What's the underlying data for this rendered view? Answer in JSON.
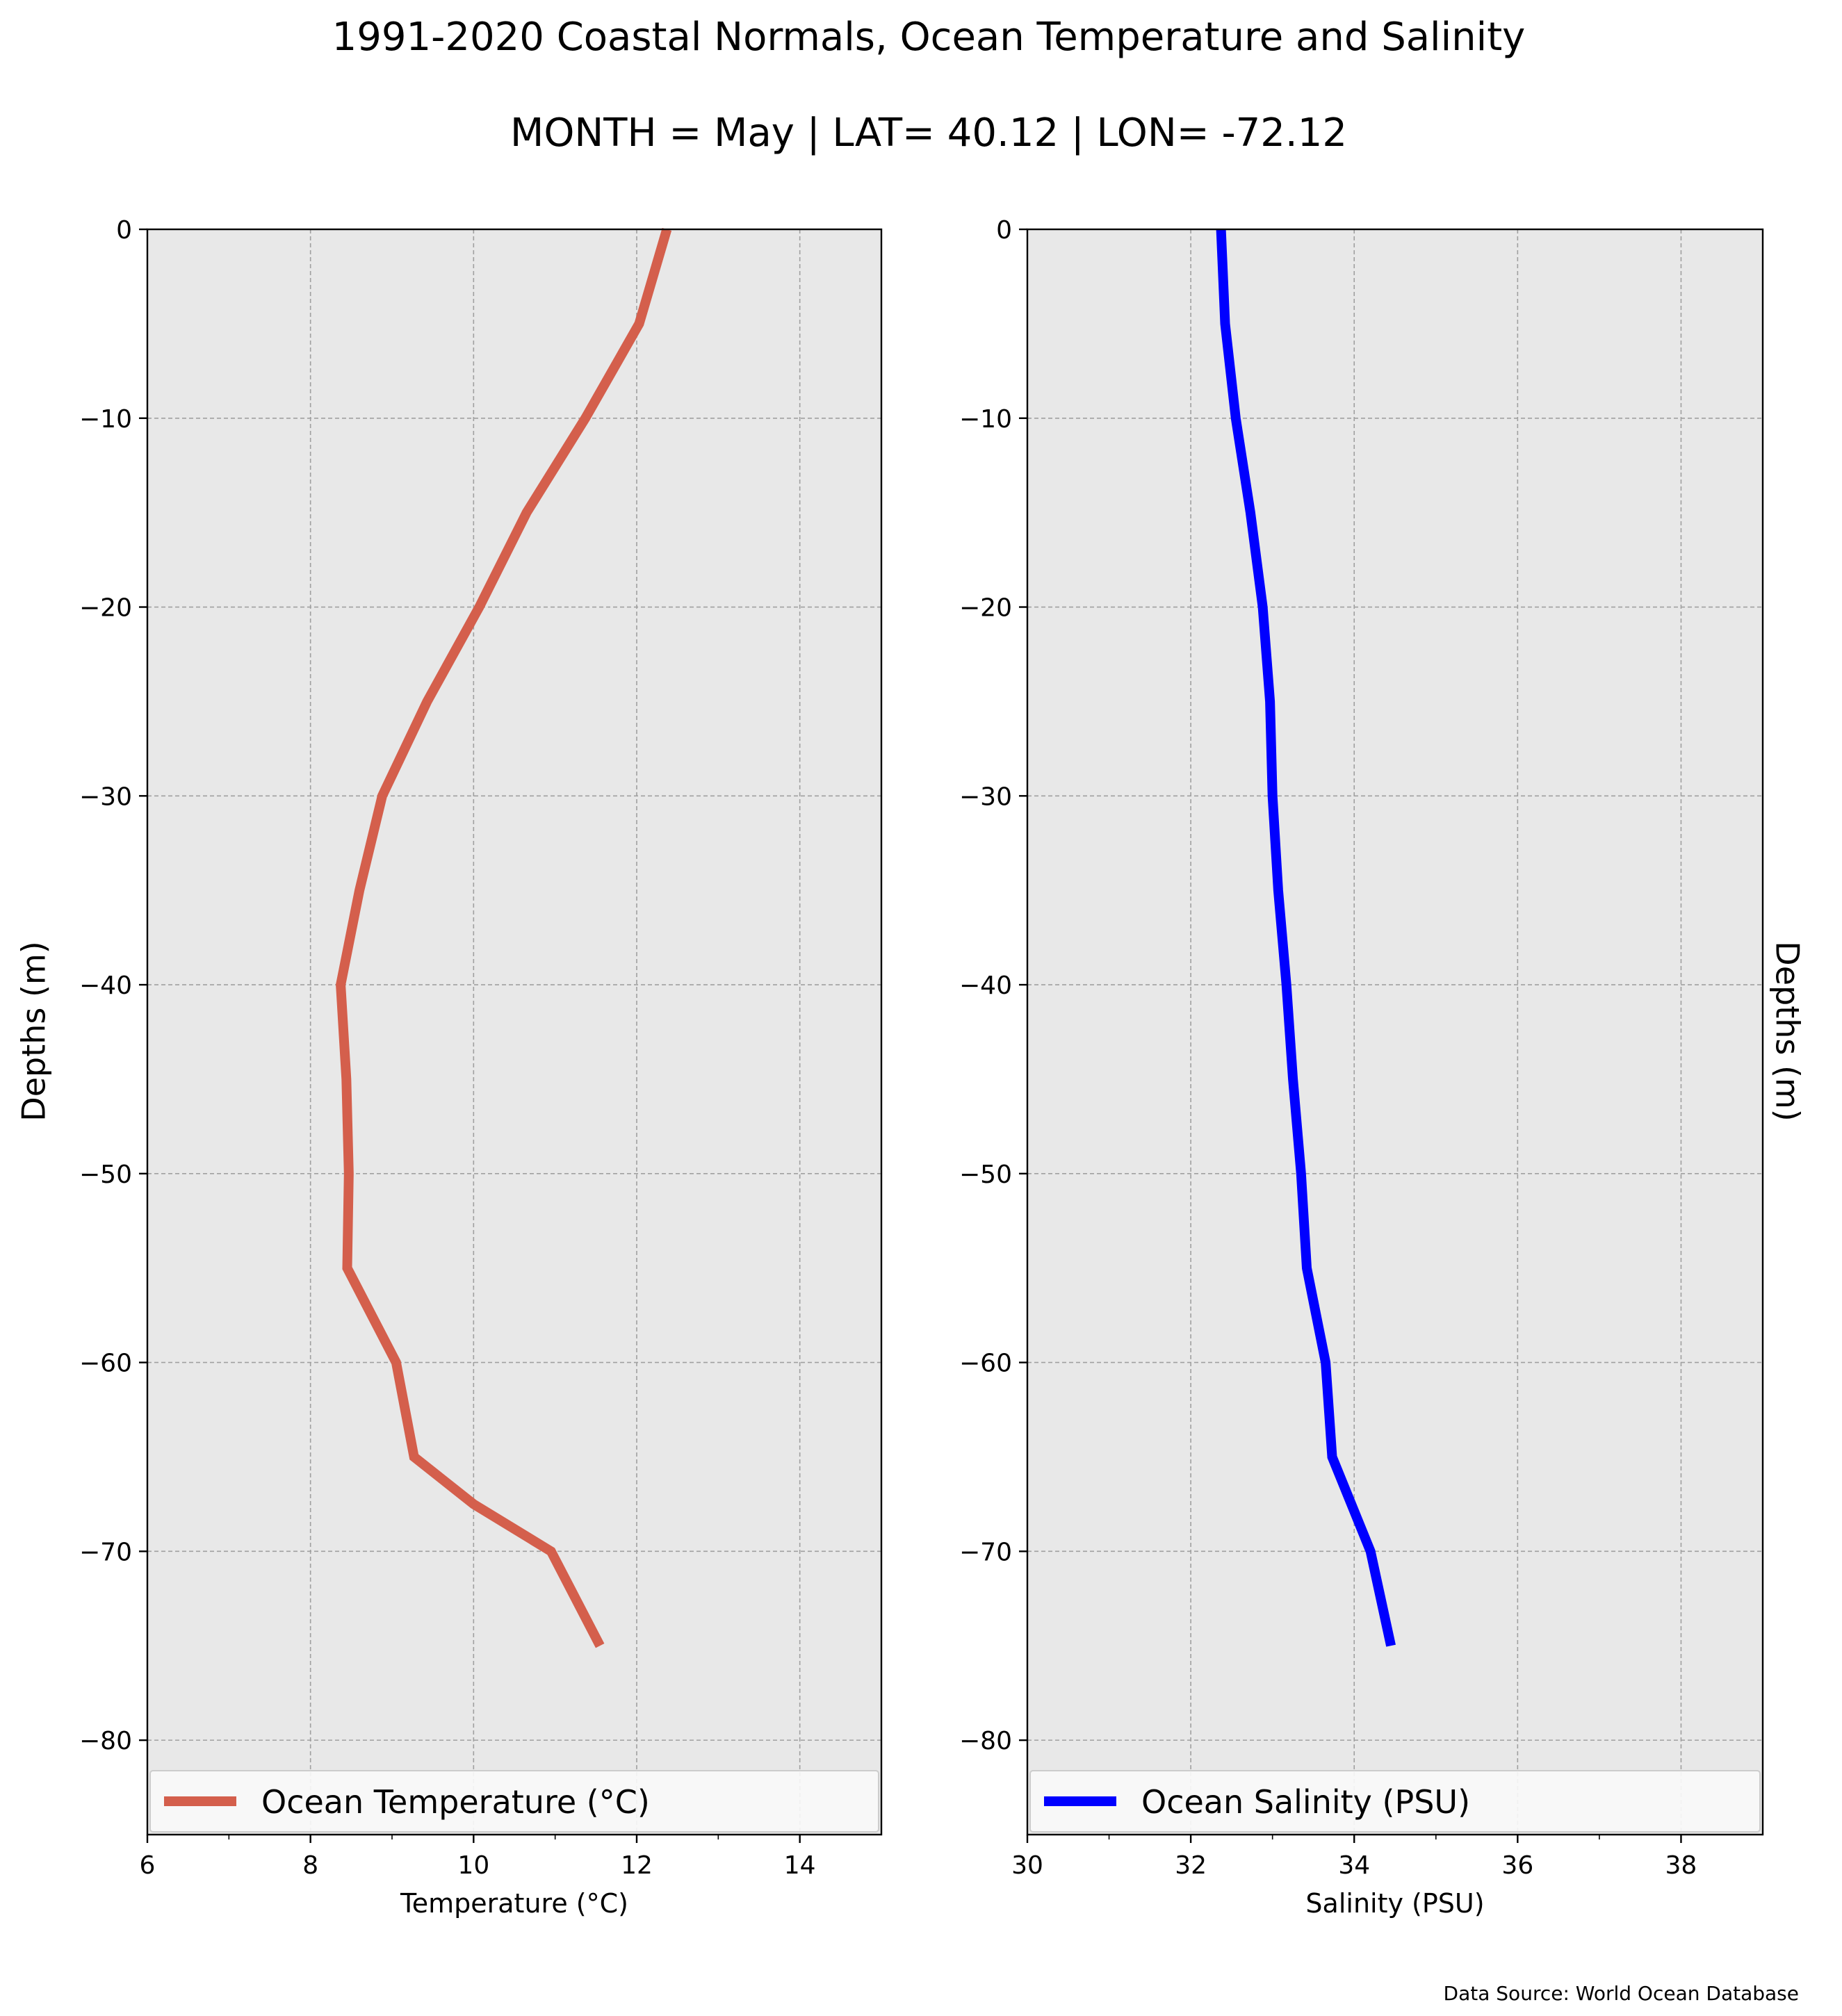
{
  "figure": {
    "title_line1": "1991-2020 Coastal Normals, Ocean Temperature and Salinity",
    "title_line2": "MONTH = May | LAT= 40.12 | LON= -72.12",
    "footer": "Data Source: World Ocean Database"
  },
  "chart_data": [
    {
      "type": "line",
      "xlabel": "Temperature (°C)",
      "ylabel": "Depths (m)",
      "xlim": [
        6,
        15
      ],
      "ylim": [
        -85,
        0
      ],
      "xticks": [
        6,
        8,
        10,
        12,
        14
      ],
      "xtick_labels": [
        "6",
        "8",
        "10",
        "12",
        "14"
      ],
      "yticks": [
        0,
        -10,
        -20,
        -30,
        -40,
        -50,
        -60,
        -70,
        -80
      ],
      "ytick_labels": [
        "0",
        "−10",
        "−20",
        "−30",
        "−40",
        "−50",
        "−60",
        "−70",
        "−80"
      ],
      "grid": true,
      "legend_position": "bottom",
      "ylabel_side": "left",
      "series": [
        {
          "name": "Ocean Temperature (°C)",
          "color": "#d45f4c",
          "x": [
            12.37,
            12.03,
            11.37,
            10.65,
            10.07,
            9.43,
            8.88,
            8.6,
            8.37,
            8.44,
            8.47,
            8.45,
            9.05,
            9.27,
            10.0,
            10.95,
            11.55
          ],
          "y": [
            0,
            -5,
            -10,
            -15,
            -20,
            -25,
            -30,
            -35,
            -40,
            -45,
            -50,
            -55,
            -60,
            -65,
            -67.5,
            -70,
            -75
          ]
        }
      ]
    },
    {
      "type": "line",
      "xlabel": "Salinity (PSU)",
      "ylabel": "Depths (m)",
      "xlim": [
        30,
        39
      ],
      "ylim": [
        -85,
        0
      ],
      "xticks": [
        30,
        32,
        34,
        36,
        38
      ],
      "xtick_labels": [
        "30",
        "32",
        "34",
        "36",
        "38"
      ],
      "yticks": [
        0,
        -10,
        -20,
        -30,
        -40,
        -50,
        -60,
        -70,
        -80
      ],
      "ytick_labels": [
        "0",
        "−10",
        "−20",
        "−30",
        "−40",
        "−50",
        "−60",
        "−70",
        "−80"
      ],
      "grid": true,
      "legend_position": "bottom",
      "ylabel_side": "right",
      "series": [
        {
          "name": "Ocean Salinity (PSU)",
          "color": "#0000ff",
          "x": [
            32.37,
            32.42,
            32.55,
            32.73,
            32.88,
            32.97,
            33.0,
            33.07,
            33.17,
            33.25,
            33.35,
            33.42,
            33.65,
            33.73,
            34.2,
            34.45
          ],
          "y": [
            0,
            -5,
            -10,
            -15,
            -20,
            -25,
            -30,
            -35,
            -40,
            -45,
            -50,
            -55,
            -60,
            -65,
            -70,
            -75
          ]
        }
      ]
    }
  ]
}
